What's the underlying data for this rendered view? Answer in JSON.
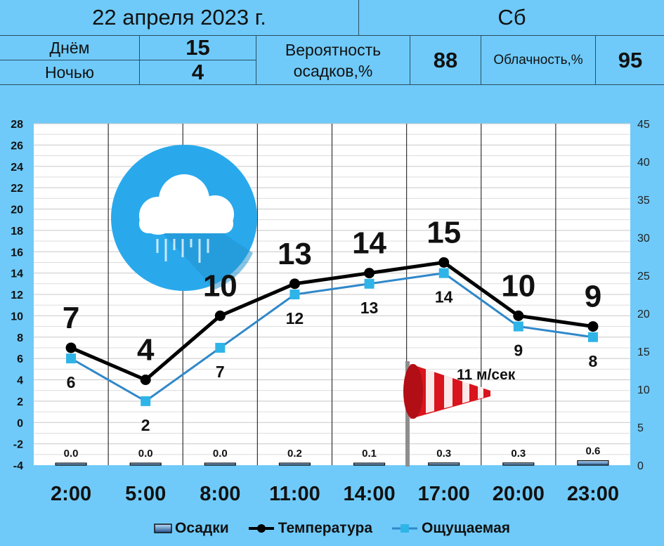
{
  "header": {
    "date": "22 апреля 2023 г.",
    "weekday": "Сб",
    "day_label": "Днём",
    "night_label": "Ночью",
    "day_temp": "15",
    "night_temp": "4",
    "precip_label_1": "Вероятность",
    "precip_label_2": "осадков,%",
    "precip_value": "88",
    "cloud_label": "Облачность,%",
    "cloud_value": "95"
  },
  "weather_icon": "rain-cloud-icon",
  "wind": {
    "icon": "windsock-icon",
    "text": "11 м/сек"
  },
  "colors": {
    "background": "#6fcaf9",
    "temperature": "#000000",
    "feels_like": "#2f88c9",
    "feels_like_marker": "#2fb4e8",
    "icon_circle": "#29a9ec",
    "windsock": "#d9141c"
  },
  "chart_data": {
    "type": "line",
    "categories": [
      "2:00",
      "5:00",
      "8:00",
      "11:00",
      "14:00",
      "17:00",
      "20:00",
      "23:00"
    ],
    "series": [
      {
        "name": "Температура",
        "values": [
          7,
          4,
          10,
          13,
          14,
          15,
          10,
          9
        ],
        "axis": "left",
        "marker": "circle"
      },
      {
        "name": "Ощущаемая",
        "values": [
          6,
          2,
          7,
          12,
          13,
          14,
          9,
          8
        ],
        "axis": "left",
        "marker": "square"
      },
      {
        "name": "Осадки",
        "type": "bar",
        "values": [
          0.0,
          0.0,
          0.0,
          0.2,
          0.1,
          0.3,
          0.3,
          0.6
        ],
        "labels": [
          "0.0",
          "0.0",
          "0.0",
          "0.2",
          "0.1",
          "0.3",
          "0.3",
          "0.6"
        ],
        "axis": "right"
      }
    ],
    "y_left": {
      "min": -4,
      "max": 28,
      "ticks": [
        -4,
        -2,
        0,
        2,
        4,
        6,
        8,
        10,
        12,
        14,
        16,
        18,
        20,
        22,
        24,
        26,
        28
      ]
    },
    "y_right": {
      "min": 0,
      "max": 45,
      "ticks": [
        0,
        5,
        10,
        15,
        20,
        25,
        30,
        35,
        40,
        45
      ]
    },
    "grid": true,
    "legend_position": "bottom",
    "legend": [
      "Осадки",
      "Температура",
      "Ощущаемая"
    ]
  }
}
